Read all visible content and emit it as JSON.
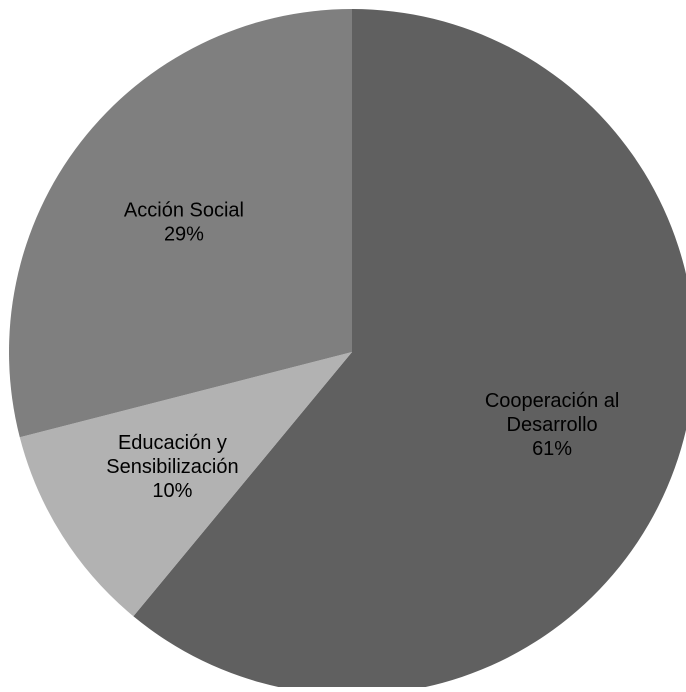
{
  "chart_data": {
    "type": "pie",
    "title": "",
    "legend": "none",
    "slices": [
      {
        "label_lines": [
          "Cooperación al",
          "Desarrollo"
        ],
        "value": 61,
        "value_label": "61%",
        "color": "#606060"
      },
      {
        "label_lines": [
          "Educación y",
          "Sensibilización"
        ],
        "value": 10,
        "value_label": "10%",
        "color": "#b2b2b2"
      },
      {
        "label_lines": [
          "Acción Social"
        ],
        "value": 29,
        "value_label": "29%",
        "color": "#7f7f7f"
      }
    ]
  }
}
